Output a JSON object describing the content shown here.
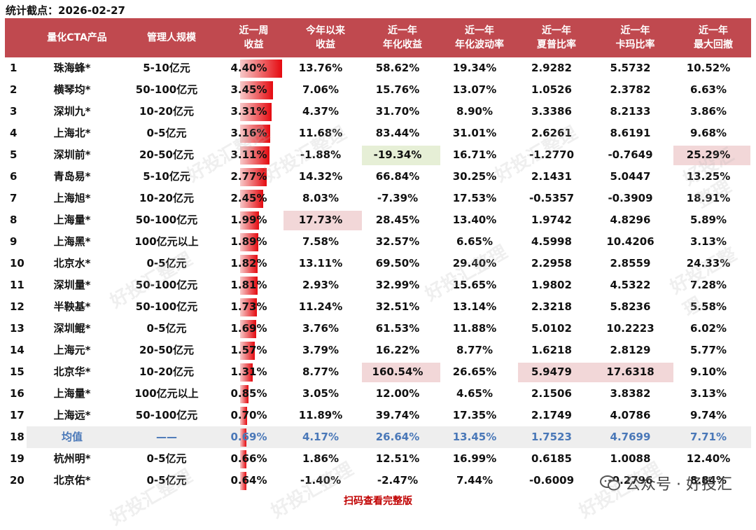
{
  "stat_label": "统计截点：2026-02-27",
  "headers": [
    {
      "line1": "量化CTA产品",
      "line2": ""
    },
    {
      "line1": "管理人规模",
      "line2": ""
    },
    {
      "line1": "近一周",
      "line2": "收益"
    },
    {
      "line1": "今年以来",
      "line2": "收益"
    },
    {
      "line1": "近一年",
      "line2": "年化收益"
    },
    {
      "line1": "近一年",
      "line2": "年化波动率"
    },
    {
      "line1": "近一年",
      "line2": "夏普比率"
    },
    {
      "line1": "近一年",
      "line2": "卡玛比率"
    },
    {
      "line1": "近一年",
      "line2": "最大回撤"
    }
  ],
  "rows": [
    {
      "idx": "1",
      "name": "珠海蜂*",
      "scale": "5-10亿元",
      "week": "4.40%",
      "ytd": "13.76%",
      "ann": "58.62%",
      "vol": "19.34%",
      "sharpe": "2.9282",
      "calmar": "5.5732",
      "mdd": "10.52%",
      "week_value": 4.4
    },
    {
      "idx": "2",
      "name": "横琴均*",
      "scale": "50-100亿元",
      "week": "3.45%",
      "ytd": "7.06%",
      "ann": "15.76%",
      "vol": "13.07%",
      "sharpe": "1.0526",
      "calmar": "2.3782",
      "mdd": "6.63%",
      "week_value": 3.45
    },
    {
      "idx": "3",
      "name": "深圳九*",
      "scale": "10-20亿元",
      "week": "3.31%",
      "ytd": "4.37%",
      "ann": "31.70%",
      "vol": "8.90%",
      "sharpe": "3.3386",
      "calmar": "8.2133",
      "mdd": "3.86%",
      "week_value": 3.31
    },
    {
      "idx": "4",
      "name": "上海北*",
      "scale": "0-5亿元",
      "week": "3.16%",
      "ytd": "11.68%",
      "ann": "83.44%",
      "vol": "31.01%",
      "sharpe": "2.6261",
      "calmar": "8.6191",
      "mdd": "9.68%",
      "week_value": 3.16
    },
    {
      "idx": "5",
      "name": "深圳前*",
      "scale": "20-50亿元",
      "week": "3.11%",
      "ytd": "-1.88%",
      "ann": "-19.34%",
      "vol": "16.71%",
      "sharpe": "-1.2770",
      "calmar": "-0.7649",
      "mdd": "25.29%",
      "week_value": 3.11
    },
    {
      "idx": "6",
      "name": "青岛易*",
      "scale": "5-10亿元",
      "week": "2.77%",
      "ytd": "14.32%",
      "ann": "66.84%",
      "vol": "30.25%",
      "sharpe": "2.1431",
      "calmar": "5.0447",
      "mdd": "13.25%",
      "week_value": 2.77
    },
    {
      "idx": "7",
      "name": "上海旭*",
      "scale": "10-20亿元",
      "week": "2.45%",
      "ytd": "8.03%",
      "ann": "-7.39%",
      "vol": "17.53%",
      "sharpe": "-0.5357",
      "calmar": "-0.3909",
      "mdd": "18.91%",
      "week_value": 2.45
    },
    {
      "idx": "8",
      "name": "上海量*",
      "scale": "50-100亿元",
      "week": "1.99%",
      "ytd": "17.73%",
      "ann": "28.45%",
      "vol": "13.40%",
      "sharpe": "1.9742",
      "calmar": "4.8296",
      "mdd": "5.89%",
      "week_value": 1.99
    },
    {
      "idx": "9",
      "name": "上海黑*",
      "scale": "100亿元以上",
      "week": "1.89%",
      "ytd": "7.58%",
      "ann": "32.57%",
      "vol": "6.65%",
      "sharpe": "4.5998",
      "calmar": "10.4206",
      "mdd": "3.13%",
      "week_value": 1.89
    },
    {
      "idx": "10",
      "name": "北京水*",
      "scale": "0-5亿元",
      "week": "1.82%",
      "ytd": "13.11%",
      "ann": "69.50%",
      "vol": "29.40%",
      "sharpe": "2.2958",
      "calmar": "2.8559",
      "mdd": "24.33%",
      "week_value": 1.82
    },
    {
      "idx": "11",
      "name": "深圳量*",
      "scale": "50-100亿元",
      "week": "1.81%",
      "ytd": "2.93%",
      "ann": "32.99%",
      "vol": "15.65%",
      "sharpe": "1.9802",
      "calmar": "4.5322",
      "mdd": "7.28%",
      "week_value": 1.81
    },
    {
      "idx": "12",
      "name": "半鞅基*",
      "scale": "50-100亿元",
      "week": "1.73%",
      "ytd": "11.24%",
      "ann": "32.51%",
      "vol": "13.14%",
      "sharpe": "2.3218",
      "calmar": "5.8236",
      "mdd": "5.58%",
      "week_value": 1.73
    },
    {
      "idx": "13",
      "name": "深圳鲲*",
      "scale": "0-5亿元",
      "week": "1.69%",
      "ytd": "3.76%",
      "ann": "61.53%",
      "vol": "11.88%",
      "sharpe": "5.0102",
      "calmar": "10.2223",
      "mdd": "6.02%",
      "week_value": 1.69
    },
    {
      "idx": "14",
      "name": "上海元*",
      "scale": "20-50亿元",
      "week": "1.57%",
      "ytd": "3.79%",
      "ann": "16.22%",
      "vol": "8.77%",
      "sharpe": "1.6218",
      "calmar": "2.8129",
      "mdd": "5.77%",
      "week_value": 1.57
    },
    {
      "idx": "15",
      "name": "北京华*",
      "scale": "10-20亿元",
      "week": "1.31%",
      "ytd": "8.77%",
      "ann": "160.54%",
      "vol": "26.65%",
      "sharpe": "5.9479",
      "calmar": "17.6318",
      "mdd": "9.10%",
      "week_value": 1.31
    },
    {
      "idx": "16",
      "name": "上海量*",
      "scale": "100亿元以上",
      "week": "0.85%",
      "ytd": "3.05%",
      "ann": "12.00%",
      "vol": "4.65%",
      "sharpe": "2.1506",
      "calmar": "3.8382",
      "mdd": "3.13%",
      "week_value": 0.85
    },
    {
      "idx": "17",
      "name": "上海远*",
      "scale": "50-100亿元",
      "week": "0.70%",
      "ytd": "11.89%",
      "ann": "39.74%",
      "vol": "17.35%",
      "sharpe": "2.1749",
      "calmar": "4.0786",
      "mdd": "9.74%",
      "week_value": 0.7
    },
    {
      "idx": "18",
      "name": "均值",
      "scale": "——",
      "week": "0.69%",
      "ytd": "4.17%",
      "ann": "26.64%",
      "vol": "13.45%",
      "sharpe": "1.7523",
      "calmar": "4.7699",
      "mdd": "7.71%",
      "week_value": 0.69,
      "is_avg": true
    },
    {
      "idx": "19",
      "name": "杭州明*",
      "scale": "0-5亿元",
      "week": "0.66%",
      "ytd": "1.86%",
      "ann": "12.51%",
      "vol": "16.99%",
      "sharpe": "0.6185",
      "calmar": "1.0088",
      "mdd": "12.40%",
      "week_value": 0.66
    },
    {
      "idx": "20",
      "name": "北京佑*",
      "scale": "0-5亿元",
      "week": "0.64%",
      "ytd": "-1.40%",
      "ann": "-2.47%",
      "vol": "7.44%",
      "sharpe": "-0.6009",
      "calmar": "-0.2796",
      "mdd": "8.84%",
      "week_value": 0.64
    }
  ],
  "week_max": 4.4,
  "highlights": [
    {
      "row": 4,
      "col": "ann",
      "color": "green"
    },
    {
      "row": 4,
      "col": "mdd",
      "color": "red"
    },
    {
      "row": 7,
      "col": "ytd",
      "color": "red"
    },
    {
      "row": 14,
      "col": "ann",
      "color": "red"
    },
    {
      "row": 14,
      "col": "sharpe",
      "color": "red"
    },
    {
      "row": 14,
      "col": "calmar",
      "color": "red"
    }
  ],
  "footer": "扫码查看完整版",
  "wechat": "公众号 · 好投汇",
  "watermark": "好投汇整理",
  "colors": {
    "header": "#c0494f",
    "bar": "#e5090f",
    "avg_text": "#4a78b8",
    "footer": "#c00000"
  }
}
